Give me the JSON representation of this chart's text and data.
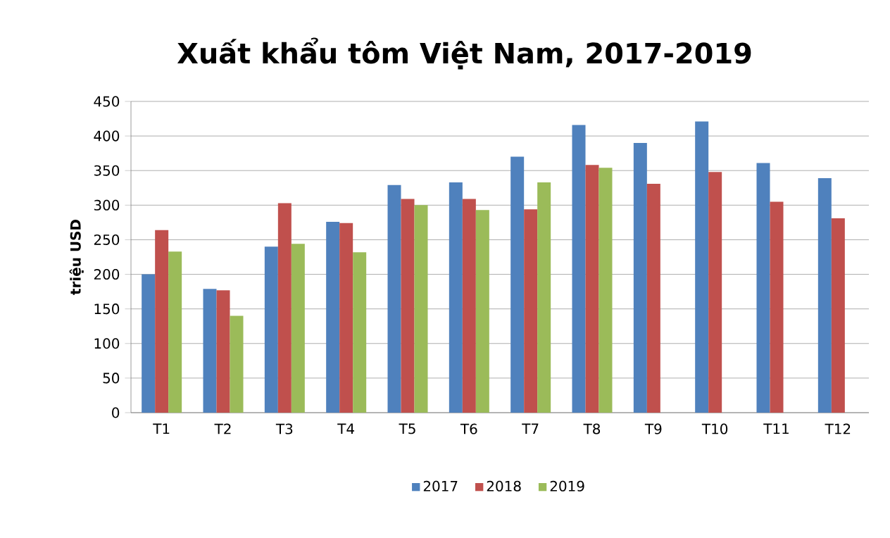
{
  "chart_data": {
    "type": "bar",
    "title": "Xuất khẩu tôm Việt Nam, 2017-2019",
    "ylabel": "triệu USD",
    "categories": [
      "T1",
      "T2",
      "T3",
      "T4",
      "T5",
      "T6",
      "T7",
      "T8",
      "T9",
      "T10",
      "T11",
      "T12"
    ],
    "series": [
      {
        "name": "2017",
        "color": "#4f81bd",
        "values": [
          200,
          179,
          240,
          276,
          329,
          333,
          370,
          416,
          390,
          421,
          361,
          339
        ]
      },
      {
        "name": "2018",
        "color": "#c0504d",
        "values": [
          264,
          177,
          303,
          274,
          309,
          309,
          294,
          358,
          331,
          348,
          305,
          281
        ]
      },
      {
        "name": "2019",
        "color": "#9bbb59",
        "values": [
          233,
          140,
          244,
          232,
          300,
          293,
          333,
          354,
          null,
          null,
          null,
          null
        ]
      }
    ],
    "ylim": [
      0,
      450
    ],
    "yticks": [
      0,
      50,
      100,
      150,
      200,
      250,
      300,
      350,
      400,
      450
    ],
    "grid": "y",
    "legend": "bottom"
  }
}
